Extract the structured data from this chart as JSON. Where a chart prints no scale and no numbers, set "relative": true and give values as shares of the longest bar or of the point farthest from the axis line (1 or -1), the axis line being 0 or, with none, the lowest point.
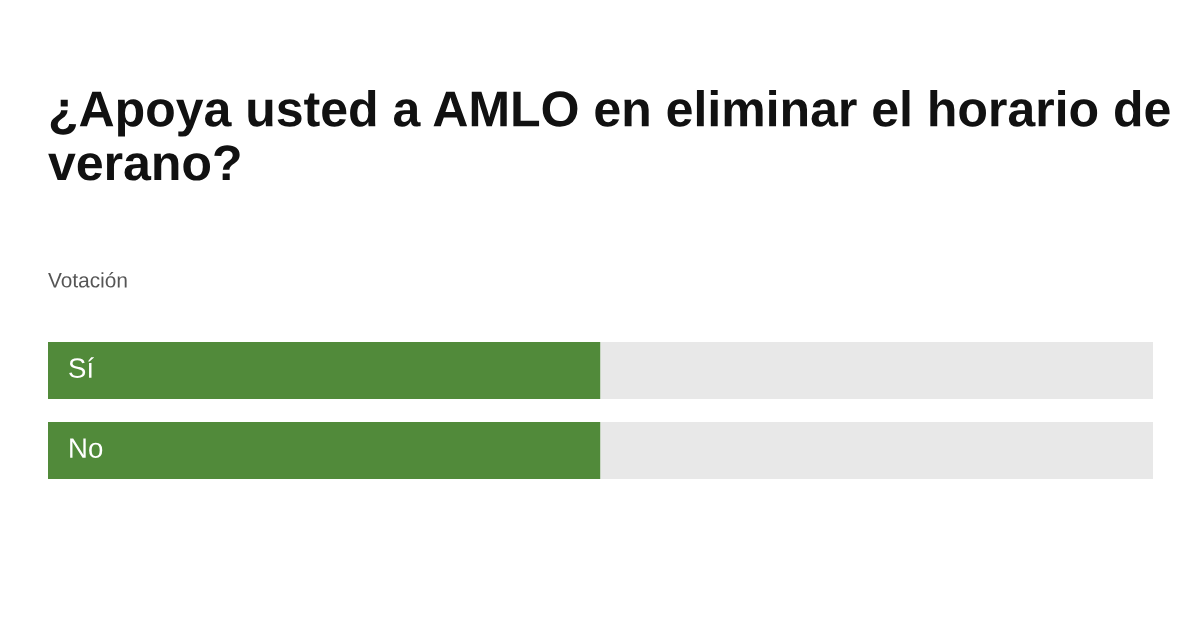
{
  "chart_data": {
    "type": "bar",
    "orientation": "horizontal",
    "stacked": true,
    "relative": true,
    "title": "¿Apoya usted a AMLO en eliminar el horario de verano?",
    "subtitle": "Votación",
    "categories": [
      "Sí",
      "No"
    ],
    "series": [
      {
        "color": "#518a3a",
        "values": [
          0.5,
          0.5
        ]
      },
      {
        "color": "#e8e8e8",
        "values": [
          0.5,
          0.5
        ]
      }
    ],
    "legend": false
  }
}
